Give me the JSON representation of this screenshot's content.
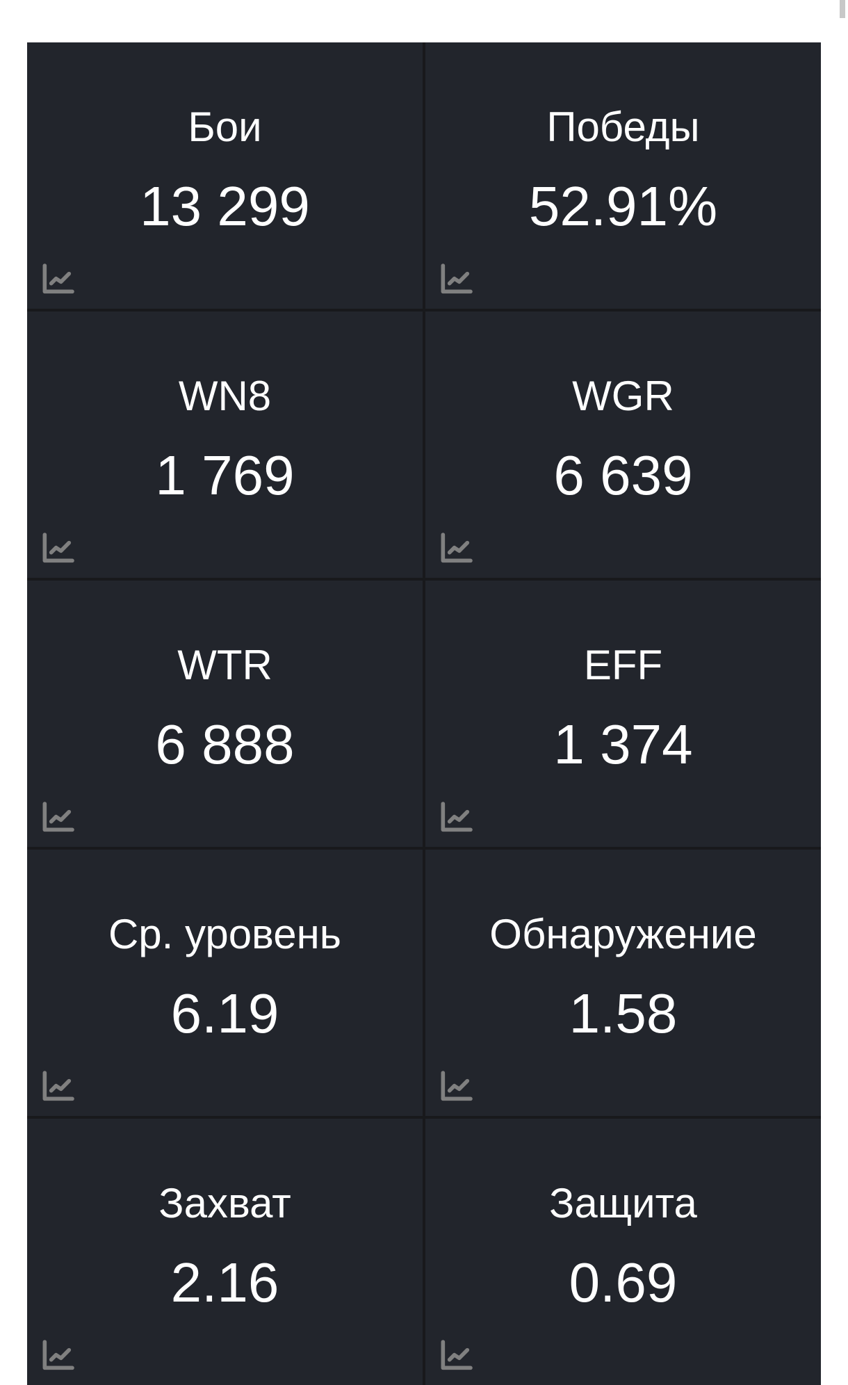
{
  "stats": [
    {
      "label": "Бои",
      "value": "13 299",
      "icon": "chart-line-icon"
    },
    {
      "label": "Победы",
      "value": "52.91%",
      "icon": "chart-line-icon"
    },
    {
      "label": "WN8",
      "value": "1 769",
      "icon": "chart-line-icon"
    },
    {
      "label": "WGR",
      "value": "6 639",
      "icon": "chart-line-icon"
    },
    {
      "label": "WTR",
      "value": "6 888",
      "icon": "chart-line-icon"
    },
    {
      "label": "EFF",
      "value": "1 374",
      "icon": "chart-line-icon"
    },
    {
      "label": "Ср. уровень",
      "value": "6.19",
      "icon": "chart-line-icon"
    },
    {
      "label": "Обнаружение",
      "value": "1.58",
      "icon": "chart-line-icon"
    },
    {
      "label": "Захват",
      "value": "2.16",
      "icon": "chart-line-icon"
    },
    {
      "label": "Защита",
      "value": "0.69",
      "icon": "chart-line-icon"
    }
  ],
  "colors": {
    "card_bg": "#22252c",
    "divider": "#18191c",
    "icon": "#808080",
    "text": "#ffffff"
  }
}
